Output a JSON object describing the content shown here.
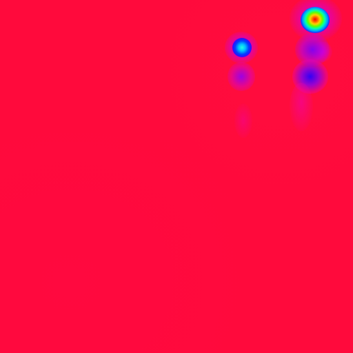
{
  "image": {
    "kind": "false-color heatmap",
    "colors": {
      "background": "#ff0a3c",
      "halo": "#c800ff",
      "hot_core": "#ff0000",
      "warm": "#ffd000",
      "mid": "#60ff00",
      "cool": "#00a0ff",
      "cold": "#2000ff"
    }
  }
}
